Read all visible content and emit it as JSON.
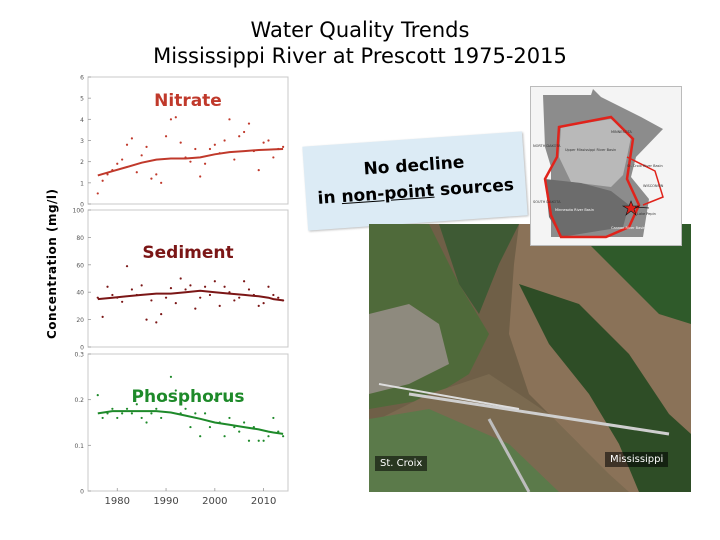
{
  "title": {
    "line1": "Water Quality Trends",
    "line2": "Mississippi River at Prescott 1975-2015"
  },
  "y_axis_label": "Concentration  (mg/l)",
  "callout": {
    "line1": "No decline",
    "line2_prefix": "in ",
    "line2_underlined": "non-point",
    "line2_suffix": " sources"
  },
  "photo": {
    "label_left": "St. Croix",
    "label_right": "Mississippi"
  },
  "map": {
    "labels": [
      "MINNESOTA",
      "NORTH DAKOTA",
      "Upper Mississippi River Basin",
      "St. Croix River Basin",
      "WISCONSIN",
      "SOUTH DAKOTA",
      "Minnesota River Basin",
      "Lake Pepin",
      "Cannon River Basin"
    ]
  },
  "colors": {
    "nitrate": "#c0392b",
    "sediment": "#7b1616",
    "phosphorus": "#1e8a2a",
    "callout_bg": "#dcebf5",
    "map_boundary": "#e0231b"
  },
  "chart_data": [
    {
      "type": "scatter",
      "title": "Nitrate",
      "ylim": [
        0,
        6
      ],
      "yticks": [
        "0",
        "1",
        "2",
        "3",
        "4",
        "5",
        "6"
      ],
      "x": [
        1976,
        1977,
        1978,
        1979,
        1980,
        1981,
        1982,
        1983,
        1984,
        1985,
        1986,
        1987,
        1988,
        1989,
        1990,
        1991,
        1992,
        1993,
        1994,
        1995,
        1996,
        1997,
        1998,
        1999,
        2000,
        2001,
        2002,
        2003,
        2004,
        2005,
        2006,
        2007,
        2008,
        2009,
        2010,
        2011,
        2012,
        2013,
        2014
      ],
      "points": [
        0.5,
        1.1,
        1.4,
        1.6,
        1.9,
        2.1,
        2.8,
        3.1,
        1.5,
        2.3,
        2.7,
        1.2,
        1.4,
        1.0,
        3.2,
        4.0,
        4.1,
        2.9,
        2.2,
        2.0,
        2.6,
        1.3,
        1.9,
        2.6,
        2.8,
        2.4,
        3.0,
        4.0,
        2.1,
        3.2,
        3.4,
        3.8,
        2.5,
        1.6,
        2.9,
        3.0,
        2.2,
        2.6,
        2.7
      ],
      "trend": [
        1.35,
        1.55,
        1.75,
        1.95,
        2.1,
        2.15,
        2.15,
        2.2,
        2.35,
        2.45,
        2.5,
        2.55,
        2.57,
        2.58,
        2.6
      ],
      "trend_x": [
        1976,
        1979,
        1982,
        1985,
        1988,
        1991,
        1994,
        1997,
        2000,
        2003,
        2006,
        2009,
        2011,
        2012,
        2014
      ]
    },
    {
      "type": "scatter",
      "title": "Sediment",
      "ylim": [
        0,
        100
      ],
      "yticks": [
        "0",
        "20",
        "40",
        "60",
        "80",
        "100"
      ],
      "x": [
        1976,
        1977,
        1978,
        1979,
        1980,
        1981,
        1982,
        1983,
        1984,
        1985,
        1986,
        1987,
        1988,
        1989,
        1990,
        1991,
        1992,
        1993,
        1994,
        1995,
        1996,
        1997,
        1998,
        1999,
        2000,
        2001,
        2002,
        2003,
        2004,
        2005,
        2006,
        2007,
        2008,
        2009,
        2010,
        2011,
        2012,
        2013,
        2014
      ],
      "points": [
        36,
        22,
        44,
        38,
        36,
        33,
        59,
        42,
        38,
        45,
        20,
        34,
        18,
        24,
        36,
        43,
        32,
        50,
        42,
        45,
        28,
        36,
        44,
        38,
        48,
        30,
        44,
        40,
        34,
        36,
        48,
        42,
        38,
        30,
        32,
        44,
        38,
        36,
        34
      ],
      "trend": [
        35,
        36,
        37,
        38,
        39,
        39,
        40,
        41,
        40,
        39,
        38,
        37,
        36,
        35,
        34
      ],
      "trend_x": [
        1976,
        1979,
        1982,
        1985,
        1988,
        1991,
        1994,
        1997,
        2000,
        2003,
        2006,
        2009,
        2011,
        2012,
        2014
      ]
    },
    {
      "type": "scatter",
      "title": "Phosphorus",
      "ylim": [
        0,
        0.3
      ],
      "yticks": [
        "0",
        "0.1",
        "0.2",
        "0.3"
      ],
      "xticks": [
        "1980",
        "1990",
        "2000",
        "2010"
      ],
      "x": [
        1976,
        1977,
        1978,
        1979,
        1980,
        1981,
        1982,
        1983,
        1984,
        1985,
        1986,
        1987,
        1988,
        1989,
        1990,
        1991,
        1992,
        1993,
        1994,
        1995,
        1996,
        1997,
        1998,
        1999,
        2000,
        2001,
        2002,
        2003,
        2004,
        2005,
        2006,
        2007,
        2008,
        2009,
        2010,
        2011,
        2012,
        2013,
        2014
      ],
      "points": [
        0.21,
        0.16,
        0.17,
        0.18,
        0.16,
        0.17,
        0.18,
        0.17,
        0.19,
        0.16,
        0.15,
        0.17,
        0.18,
        0.16,
        0.2,
        0.25,
        0.22,
        0.17,
        0.18,
        0.14,
        0.17,
        0.12,
        0.17,
        0.14,
        0.2,
        0.15,
        0.12,
        0.16,
        0.14,
        0.13,
        0.15,
        0.11,
        0.14,
        0.11,
        0.11,
        0.12,
        0.16,
        0.13,
        0.12
      ],
      "trend": [
        0.17,
        0.175,
        0.175,
        0.175,
        0.175,
        0.172,
        0.165,
        0.158,
        0.15,
        0.145,
        0.14,
        0.135,
        0.13,
        0.128,
        0.125
      ],
      "trend_x": [
        1976,
        1979,
        1982,
        1985,
        1988,
        1991,
        1994,
        1997,
        2000,
        2003,
        2006,
        2009,
        2011,
        2012,
        2014
      ]
    }
  ]
}
